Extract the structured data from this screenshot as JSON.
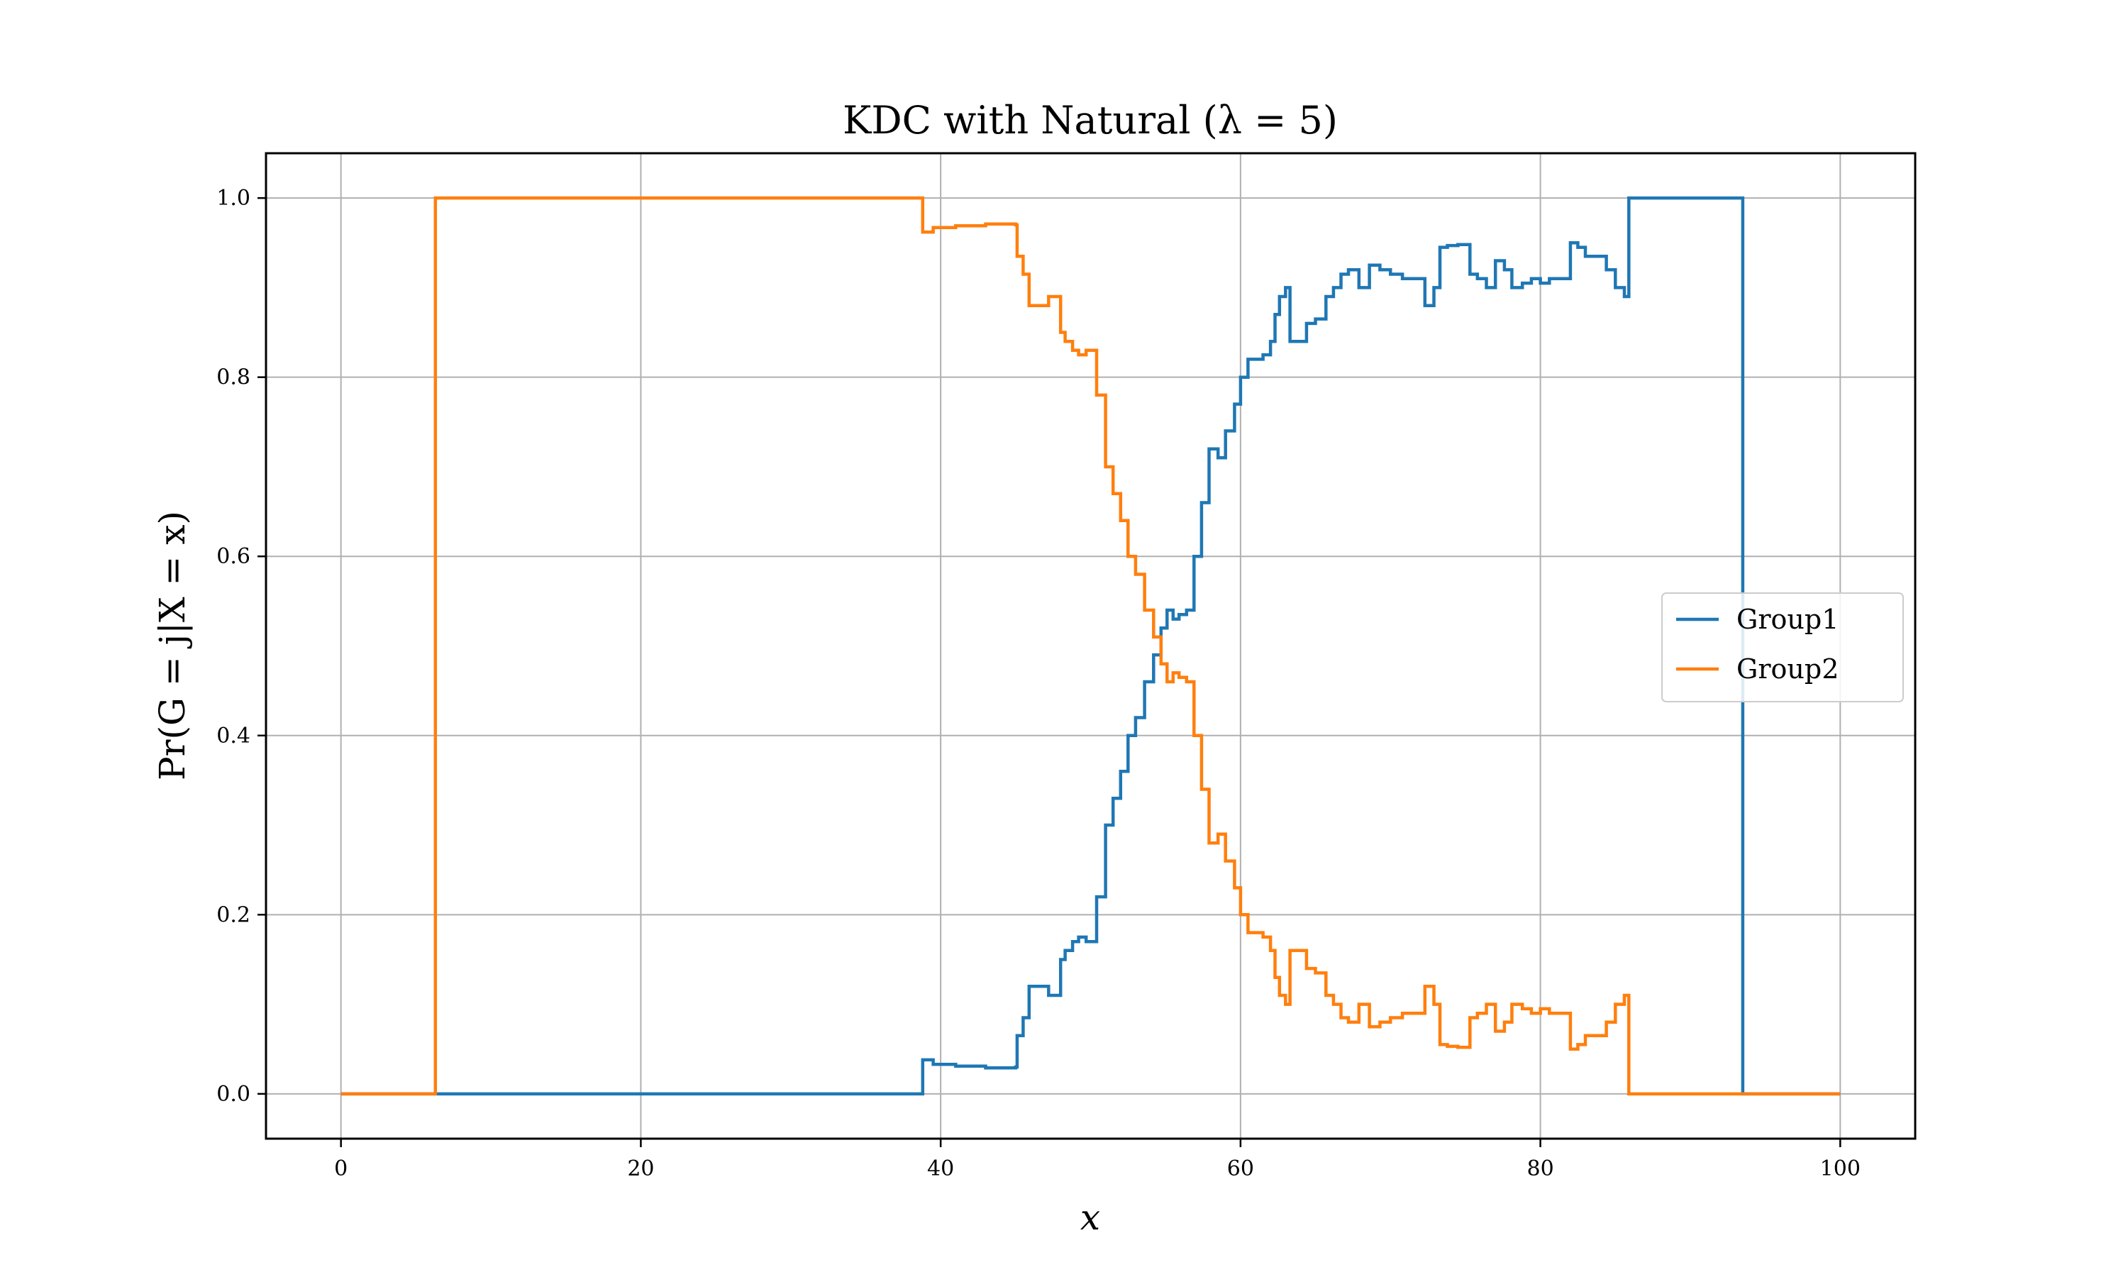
{
  "chart_data": {
    "type": "line",
    "title": "KDC with Natural (λ = 5)",
    "xlabel": "x",
    "ylabel": "Pr(G = j|X = x)",
    "xlim": [
      -5,
      105
    ],
    "ylim": [
      -0.05,
      1.05
    ],
    "xticks": [
      0,
      20,
      40,
      60,
      80,
      100
    ],
    "yticks": [
      0.0,
      0.2,
      0.4,
      0.6,
      0.8,
      1.0
    ],
    "xtick_labels": [
      "0",
      "20",
      "40",
      "60",
      "80",
      "100"
    ],
    "ytick_labels": [
      "0.0",
      "0.2",
      "0.4",
      "0.6",
      "0.8",
      "1.0"
    ],
    "grid": true,
    "legend": "center-right",
    "series": [
      {
        "name": "Group1",
        "color": "#1f77b4",
        "x": [
          0,
          6.3,
          38.8,
          38.8,
          39.5,
          41,
          43,
          45,
          45.1,
          45.5,
          45.9,
          46.5,
          47.2,
          48,
          48.3,
          48.8,
          49.2,
          49.7,
          50.4,
          51,
          51.5,
          52,
          52.5,
          53,
          53.6,
          54.2,
          54.7,
          55.1,
          55.5,
          55.9,
          56.4,
          56.9,
          57.4,
          57.9,
          58.5,
          59,
          59.6,
          60,
          60.5,
          61,
          61.5,
          62,
          62.3,
          62.6,
          63,
          63.3,
          63.8,
          64.4,
          65,
          65.7,
          66.2,
          66.7,
          67.2,
          67.9,
          68.6,
          69.3,
          70,
          70.8,
          71.6,
          72.3,
          72.9,
          73.3,
          73.8,
          74.5,
          75.3,
          75.8,
          76.4,
          77,
          77.6,
          78.1,
          78.8,
          79.4,
          80,
          80.6,
          81.3,
          82,
          82.5,
          83,
          83.7,
          84.4,
          85,
          85.6,
          85.9,
          85.9,
          93.5,
          93.5,
          100
        ],
        "y": [
          0,
          0,
          0,
          0.038,
          0.033,
          0.031,
          0.029,
          0.03,
          0.065,
          0.085,
          0.12,
          0.12,
          0.11,
          0.15,
          0.16,
          0.17,
          0.175,
          0.17,
          0.22,
          0.3,
          0.33,
          0.36,
          0.4,
          0.42,
          0.46,
          0.49,
          0.52,
          0.54,
          0.53,
          0.535,
          0.54,
          0.6,
          0.66,
          0.72,
          0.71,
          0.74,
          0.77,
          0.8,
          0.82,
          0.82,
          0.825,
          0.84,
          0.87,
          0.89,
          0.9,
          0.84,
          0.84,
          0.86,
          0.865,
          0.89,
          0.9,
          0.915,
          0.92,
          0.9,
          0.925,
          0.92,
          0.915,
          0.91,
          0.91,
          0.88,
          0.9,
          0.945,
          0.947,
          0.948,
          0.915,
          0.91,
          0.9,
          0.93,
          0.92,
          0.9,
          0.905,
          0.91,
          0.905,
          0.91,
          0.91,
          0.95,
          0.945,
          0.935,
          0.935,
          0.92,
          0.9,
          0.89,
          0.89,
          1.0,
          1.0,
          0,
          0
        ]
      },
      {
        "name": "Group2",
        "color": "#ff7f0e",
        "x": [
          0,
          6.3,
          6.3,
          38.8,
          38.8,
          39.5,
          41,
          43,
          45,
          45.1,
          45.5,
          45.9,
          46.5,
          47.2,
          48,
          48.3,
          48.8,
          49.2,
          49.7,
          50.4,
          51,
          51.5,
          52,
          52.5,
          53,
          53.6,
          54.2,
          54.7,
          55.1,
          55.5,
          55.9,
          56.4,
          56.9,
          57.4,
          57.9,
          58.5,
          59,
          59.6,
          60,
          60.5,
          61,
          61.5,
          62,
          62.3,
          62.6,
          63,
          63.3,
          63.8,
          64.4,
          65,
          65.7,
          66.2,
          66.7,
          67.2,
          67.9,
          68.6,
          69.3,
          70,
          70.8,
          71.6,
          72.3,
          72.9,
          73.3,
          73.8,
          74.5,
          75.3,
          75.8,
          76.4,
          77,
          77.6,
          78.1,
          78.8,
          79.4,
          80,
          80.6,
          81.3,
          82,
          82.5,
          83,
          83.7,
          84.4,
          85,
          85.6,
          85.9,
          85.9,
          100
        ],
        "y": [
          0,
          0,
          1.0,
          1.0,
          0.962,
          0.967,
          0.969,
          0.971,
          0.97,
          0.935,
          0.915,
          0.88,
          0.88,
          0.89,
          0.85,
          0.84,
          0.83,
          0.825,
          0.83,
          0.78,
          0.7,
          0.67,
          0.64,
          0.6,
          0.58,
          0.54,
          0.51,
          0.48,
          0.46,
          0.47,
          0.465,
          0.46,
          0.4,
          0.34,
          0.28,
          0.29,
          0.26,
          0.23,
          0.2,
          0.18,
          0.18,
          0.175,
          0.16,
          0.13,
          0.11,
          0.1,
          0.16,
          0.16,
          0.14,
          0.135,
          0.11,
          0.1,
          0.085,
          0.08,
          0.1,
          0.075,
          0.08,
          0.085,
          0.09,
          0.09,
          0.12,
          0.1,
          0.055,
          0.053,
          0.052,
          0.085,
          0.09,
          0.1,
          0.07,
          0.08,
          0.1,
          0.095,
          0.09,
          0.095,
          0.09,
          0.09,
          0.05,
          0.055,
          0.065,
          0.065,
          0.08,
          0.1,
          0.11,
          0.11,
          0,
          0
        ]
      }
    ]
  }
}
